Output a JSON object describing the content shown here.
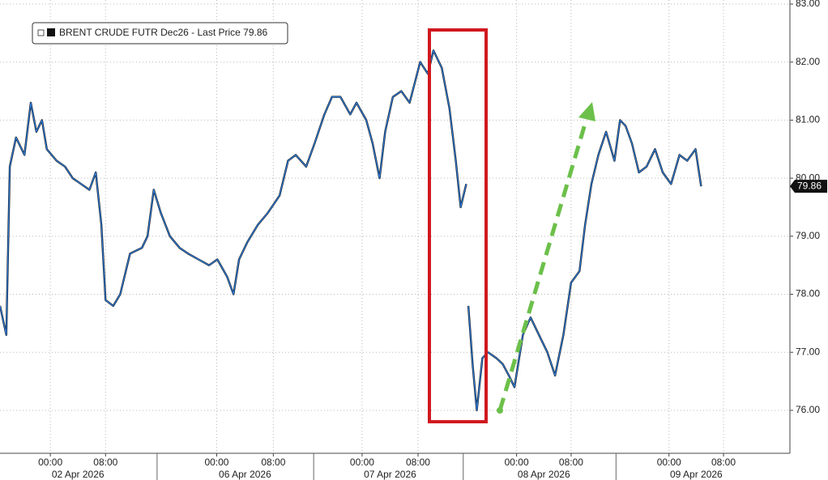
{
  "chart_data": {
    "type": "line",
    "series": [
      {
        "name": "BRENT CRUDE FUTR Dec26 - Last Price 79.86",
        "color": "#2f7bd6",
        "shadow_color": "#111111",
        "x": [
          0,
          0.9,
          1.4,
          2.3,
          3.5,
          4.4,
          5.2,
          6.0,
          6.7,
          8.1,
          9.3,
          10.4,
          11.6,
          12.8,
          13.7,
          14.5,
          15.1,
          16.2,
          17.2,
          18.6,
          20.3,
          21.1,
          22.0,
          23.0,
          24.3,
          25.7,
          26.9,
          28.4,
          29.9,
          31.1,
          32.5,
          33.4,
          34.2,
          35.4,
          36.9,
          38.3,
          40.0,
          41.2,
          42.3,
          43.8,
          45.0,
          46.4,
          47.5,
          48.7,
          50.1,
          51.0,
          52.4,
          53.3,
          54.3,
          55.1,
          56.2,
          57.4,
          58.6,
          60.1,
          61.2,
          62.0,
          63.2,
          64.3,
          65.2,
          65.9,
          66.7,
          66.8,
          67.0,
          67.6,
          68.2,
          69.0,
          69.8,
          71.0,
          71.9,
          72.8,
          73.6,
          74.8,
          75.9,
          77.1,
          78.3,
          79.4,
          80.6,
          81.7,
          82.9,
          83.7,
          84.6,
          85.6,
          86.7,
          87.9,
          88.7,
          89.5,
          90.4,
          91.4,
          92.5,
          93.7,
          94.8,
          96.0,
          97.2,
          98.3,
          99.5,
          100.3
        ],
        "values": [
          77.8,
          77.3,
          80.2,
          80.7,
          80.4,
          81.3,
          80.8,
          81.0,
          80.5,
          80.3,
          80.2,
          80.0,
          79.9,
          79.8,
          80.1,
          79.2,
          77.9,
          77.8,
          78.0,
          78.7,
          78.8,
          79.0,
          79.8,
          79.4,
          79.0,
          78.8,
          78.7,
          78.6,
          78.5,
          78.6,
          78.3,
          78.0,
          78.6,
          78.9,
          79.2,
          79.4,
          79.7,
          80.3,
          80.4,
          80.2,
          80.6,
          81.1,
          81.4,
          81.4,
          81.1,
          81.3,
          81.0,
          80.6,
          80.0,
          80.8,
          81.4,
          81.5,
          81.3,
          82.0,
          81.8,
          82.2,
          81.9,
          81.2,
          80.3,
          79.5,
          79.9,
          null,
          77.8,
          76.8,
          76.0,
          76.9,
          77.0,
          76.9,
          76.8,
          76.6,
          76.4,
          77.3,
          77.6,
          77.3,
          77.0,
          76.6,
          77.3,
          78.2,
          78.4,
          79.2,
          79.9,
          80.4,
          80.8,
          80.3,
          81.0,
          80.9,
          80.6,
          80.1,
          80.2,
          80.5,
          80.1,
          79.9,
          80.4,
          80.3,
          80.5,
          79.86
        ]
      }
    ],
    "last_price_label": "79.86",
    "xlim": [
      0,
      113
    ],
    "ylim": [
      75.26,
      83.07
    ],
    "xticks": [
      {
        "value": 7.2,
        "label": "00:00"
      },
      {
        "value": 15.1,
        "label": "08:00"
      },
      {
        "value": 31.0,
        "label": "00:00"
      },
      {
        "value": 39.1,
        "label": "08:00"
      },
      {
        "value": 51.8,
        "label": "00:00"
      },
      {
        "value": 59.8,
        "label": "08:00"
      },
      {
        "value": 73.9,
        "label": "00:00"
      },
      {
        "value": 81.7,
        "label": "08:00"
      },
      {
        "value": 95.7,
        "label": "00:00"
      },
      {
        "value": 103.5,
        "label": "08:00"
      }
    ],
    "date_labels": [
      "02 Apr 2026",
      "06 Apr 2026",
      "07 Apr 2026",
      "08 Apr 2026",
      "09 Apr 2026"
    ],
    "yticks": [
      {
        "value": 76,
        "label": "76.00"
      },
      {
        "value": 77,
        "label": "77.00"
      },
      {
        "value": 78,
        "label": "78.00"
      },
      {
        "value": 79,
        "label": "79.00"
      },
      {
        "value": 80,
        "label": "80.00"
      },
      {
        "value": 81,
        "label": "81.00"
      },
      {
        "value": 82,
        "label": "82.00"
      },
      {
        "value": 83,
        "label": "83.00"
      }
    ],
    "grid": true
  }
}
